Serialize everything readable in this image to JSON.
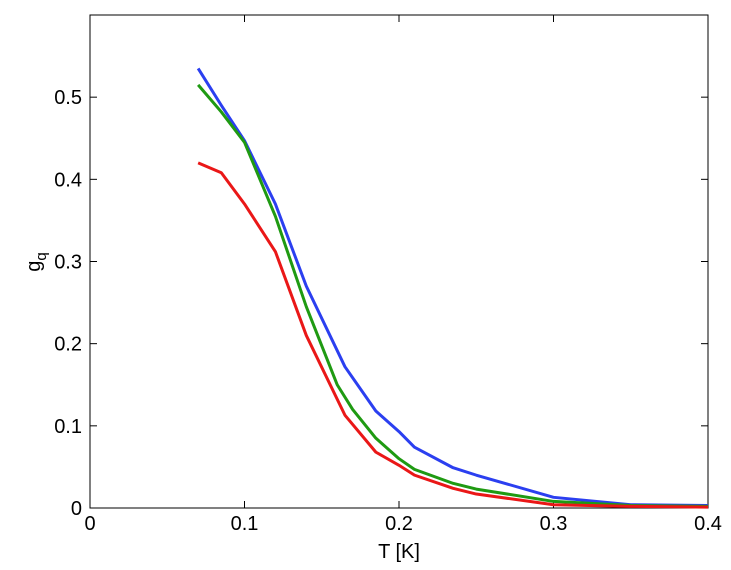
{
  "chart_data": {
    "type": "line",
    "x_label": "T [K]",
    "y_label": "g",
    "y_label_subscript": "q",
    "xlim": [
      0,
      0.4
    ],
    "xticks": [
      0,
      0.1,
      0.2,
      0.3,
      0.4
    ],
    "ylim": [
      0,
      0.6
    ],
    "yticks": [
      0,
      0.1,
      0.2,
      0.3,
      0.4,
      0.5
    ],
    "grid": false,
    "series": [
      {
        "color": "#2b3ff0",
        "x": [
          0.07,
          0.085,
          0.1,
          0.12,
          0.14,
          0.165,
          0.185,
          0.2,
          0.21,
          0.235,
          0.25,
          0.3,
          0.35,
          0.4
        ],
        "values": [
          0.535,
          0.49,
          0.447,
          0.37,
          0.27,
          0.172,
          0.118,
          0.093,
          0.074,
          0.049,
          0.04,
          0.013,
          0.004,
          0.003
        ]
      },
      {
        "color": "#1f9a12",
        "x": [
          0.07,
          0.085,
          0.1,
          0.12,
          0.14,
          0.16,
          0.17,
          0.185,
          0.2,
          0.21,
          0.235,
          0.25,
          0.3,
          0.35,
          0.4
        ],
        "values": [
          0.515,
          0.482,
          0.445,
          0.355,
          0.245,
          0.15,
          0.12,
          0.085,
          0.06,
          0.047,
          0.03,
          0.023,
          0.008,
          0.003,
          0.002
        ]
      },
      {
        "color": "#ea1717",
        "x": [
          0.07,
          0.085,
          0.1,
          0.12,
          0.14,
          0.165,
          0.185,
          0.2,
          0.21,
          0.235,
          0.25,
          0.3,
          0.35,
          0.4
        ],
        "values": [
          0.42,
          0.408,
          0.37,
          0.312,
          0.21,
          0.113,
          0.068,
          0.052,
          0.04,
          0.024,
          0.017,
          0.004,
          0.002,
          0.001
        ]
      }
    ]
  }
}
